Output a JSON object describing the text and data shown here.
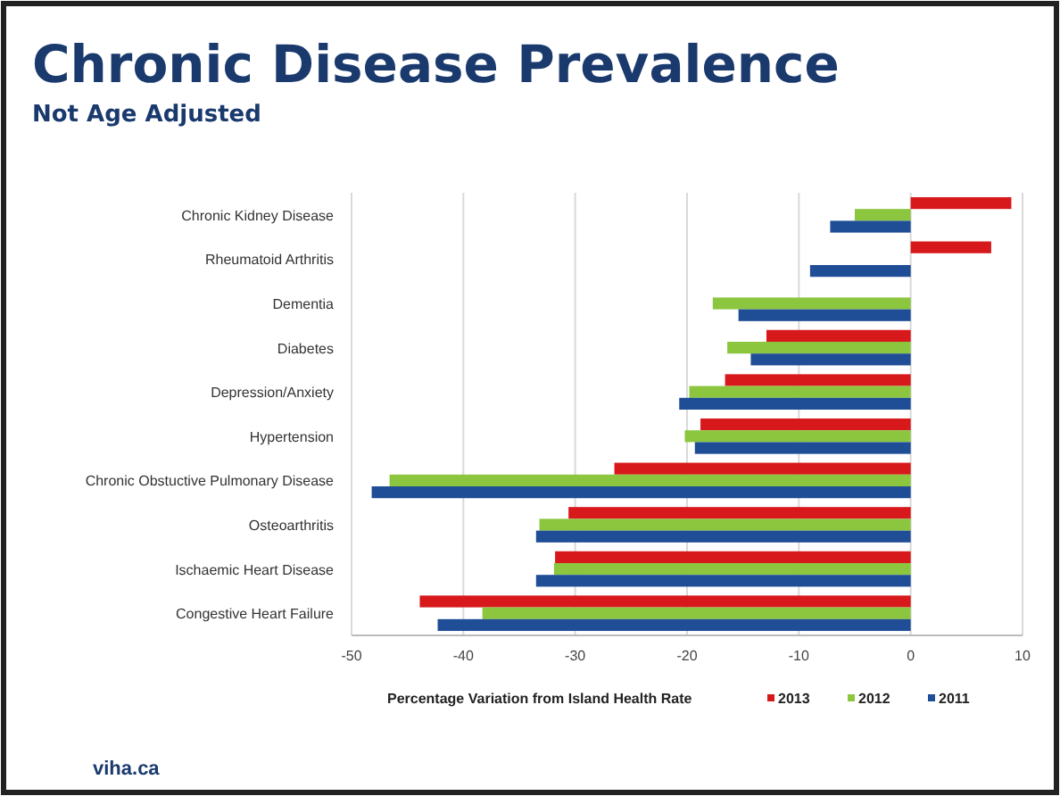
{
  "chart_data": {
    "type": "bar",
    "orientation": "horizontal",
    "title": "Chronic Disease Prevalence",
    "subtitle": "Not Age Adjusted",
    "xlabel": "Percentage Variation from Island Health Rate",
    "categories": [
      "Chronic Kidney Disease",
      "Rheumatoid Arthritis",
      "Dementia",
      "Diabetes",
      "Depression/Anxiety",
      "Hypertension",
      "Chronic Obstuctive Pulmonary Disease",
      "Osteoarthritis",
      "Ischaemic Heart Disease",
      "Congestive Heart Failure"
    ],
    "series": [
      {
        "name": "2013",
        "color": "#d7191c",
        "values": [
          9.0,
          7.2,
          null,
          -12.9,
          -16.6,
          -18.8,
          -26.5,
          -30.6,
          -31.8,
          -43.9
        ]
      },
      {
        "name": "2012",
        "color": "#8cc63f",
        "values": [
          -5.0,
          null,
          -17.7,
          -16.4,
          -19.8,
          -20.2,
          -46.6,
          -33.2,
          -31.9,
          -38.3
        ]
      },
      {
        "name": "2011",
        "color": "#1f4e96",
        "values": [
          -7.2,
          -9.0,
          -15.4,
          -14.3,
          -20.7,
          -19.3,
          -48.2,
          -33.5,
          -33.5,
          -42.3
        ]
      }
    ],
    "xlim": [
      -50,
      10
    ],
    "xticks": [
      -50,
      -40,
      -30,
      -20,
      -10,
      0,
      10
    ],
    "grid": "x",
    "legend": "bottom",
    "annotations": [
      "viha.ca"
    ]
  }
}
